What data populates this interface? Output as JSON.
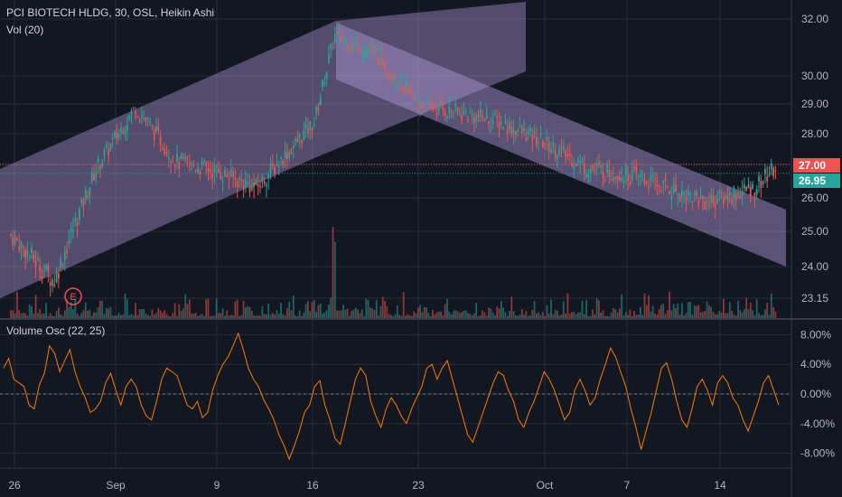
{
  "colors": {
    "background": "#131722",
    "grid": "#2a2e39",
    "up": "#26a69a",
    "down": "#ef5350",
    "channel_fill": "#b39ddb",
    "oscillator": "#f57c00",
    "label_red": "#ef5350",
    "label_green": "#26a69a"
  },
  "main_legend": {
    "title": "PCI BIOTECH HLDG, 30, OSL, Heikin Ashi",
    "volume": "Vol (20)"
  },
  "oscillator_legend": {
    "title": "Volume Osc (22, 25)"
  },
  "earnings_marker": "E",
  "price_labels": {
    "last_close": "27.00",
    "current": "26.95"
  },
  "chart_data": [
    {
      "type": "candlestick",
      "title": "PCI BIOTECH HLDG, 30, OSL, Heikin Ashi",
      "y_scale": "log",
      "y_ticks": [
        "32.00",
        "30.00",
        "29.00",
        "28.00",
        "27.00",
        "26.00",
        "25.00",
        "24.00",
        "23.15"
      ],
      "x_ticks": [
        "26",
        "Sep",
        "9",
        "16",
        "23",
        "Oct",
        "7",
        "14"
      ],
      "approx_close_path": [
        {
          "x": "Aug 26",
          "y": 24.9
        },
        {
          "x": "Aug 28",
          "y": 23.6
        },
        {
          "x": "Aug 30",
          "y": 26.8
        },
        {
          "x": "Sep 3",
          "y": 28.9
        },
        {
          "x": "Sep 5",
          "y": 27.1
        },
        {
          "x": "Sep 9",
          "y": 26.8
        },
        {
          "x": "Sep 11",
          "y": 26.3
        },
        {
          "x": "Sep 13",
          "y": 27.7
        },
        {
          "x": "Sep 16",
          "y": 28.4
        },
        {
          "x": "Sep 17",
          "y": 31.4
        },
        {
          "x": "Sep 19",
          "y": 30.8
        },
        {
          "x": "Sep 23",
          "y": 29.0
        },
        {
          "x": "Sep 27",
          "y": 28.4
        },
        {
          "x": "Oct 1",
          "y": 27.7
        },
        {
          "x": "Oct 3",
          "y": 26.9
        },
        {
          "x": "Oct 7",
          "y": 26.7
        },
        {
          "x": "Oct 11",
          "y": 25.9
        },
        {
          "x": "Oct 14",
          "y": 26.0
        },
        {
          "x": "Oct 16",
          "y": 26.3
        },
        {
          "x": "Oct 18",
          "y": 26.95
        }
      ],
      "last_close": 27.0,
      "current": 26.95,
      "channels": [
        {
          "name": "rising channel",
          "from": "Aug 26",
          "to": "Sep 19"
        },
        {
          "name": "falling channel",
          "from": "Sep 17",
          "to": "Oct 21"
        }
      ]
    },
    {
      "type": "line",
      "title": "Volume Osc (22, 25)",
      "y_ticks": [
        "8.00%",
        "4.00%",
        "0.00%",
        "-4.00%",
        "-8.00%"
      ],
      "ylim": [
        -10,
        10
      ],
      "values": [
        3.5,
        4.8,
        2.0,
        1.5,
        1.0,
        -1.5,
        -2.0,
        1.2,
        2.8,
        6.5,
        5.5,
        3.0,
        4.5,
        6.0,
        3.0,
        1.0,
        -0.5,
        -2.5,
        -2.0,
        -1.0,
        1.5,
        2.8,
        0.5,
        -1.5,
        1.0,
        2.0,
        1.0,
        -1.5,
        -3.0,
        -3.5,
        -1.0,
        2.0,
        3.5,
        3.0,
        2.5,
        0.5,
        -1.5,
        -2.0,
        -1.0,
        -3.2,
        -2.5,
        0.5,
        2.5,
        4.0,
        5.0,
        6.5,
        8.2,
        6.0,
        3.5,
        2.0,
        1.0,
        -0.8,
        -2.0,
        -3.5,
        -5.5,
        -7.0,
        -8.8,
        -7.0,
        -5.0,
        -2.5,
        -1.5,
        1.0,
        1.8,
        -1.5,
        -3.5,
        -6.0,
        -6.8,
        -4.0,
        -1.0,
        2.0,
        3.5,
        2.5,
        -1.0,
        -3.0,
        -4.5,
        -2.0,
        -0.5,
        -1.5,
        -3.0,
        -4.0,
        -2.0,
        -0.5,
        1.0,
        3.5,
        4.0,
        2.0,
        3.5,
        4.5,
        2.0,
        -0.5,
        -3.0,
        -5.5,
        -6.5,
        -4.5,
        -2.5,
        -0.5,
        1.5,
        3.0,
        2.5,
        0.5,
        -1.0,
        -3.5,
        -4.5,
        -2.5,
        -1.0,
        1.0,
        3.0,
        2.0,
        0.5,
        -1.5,
        -3.5,
        -2.5,
        0.5,
        2.0,
        0.5,
        -1.5,
        -0.5,
        2.0,
        4.0,
        6.2,
        5.0,
        3.0,
        1.0,
        -2.0,
        -4.5,
        -7.5,
        -5.0,
        -2.5,
        0.5,
        3.5,
        4.2,
        2.0,
        -1.0,
        -3.5,
        -4.5,
        -2.0,
        1.0,
        2.0,
        0.5,
        -1.5,
        1.5,
        2.5,
        1.5,
        -0.5,
        -1.5,
        -3.5,
        -5.0,
        -3.0,
        -1.0,
        1.5,
        2.5,
        0.5,
        -1.5
      ]
    }
  ]
}
